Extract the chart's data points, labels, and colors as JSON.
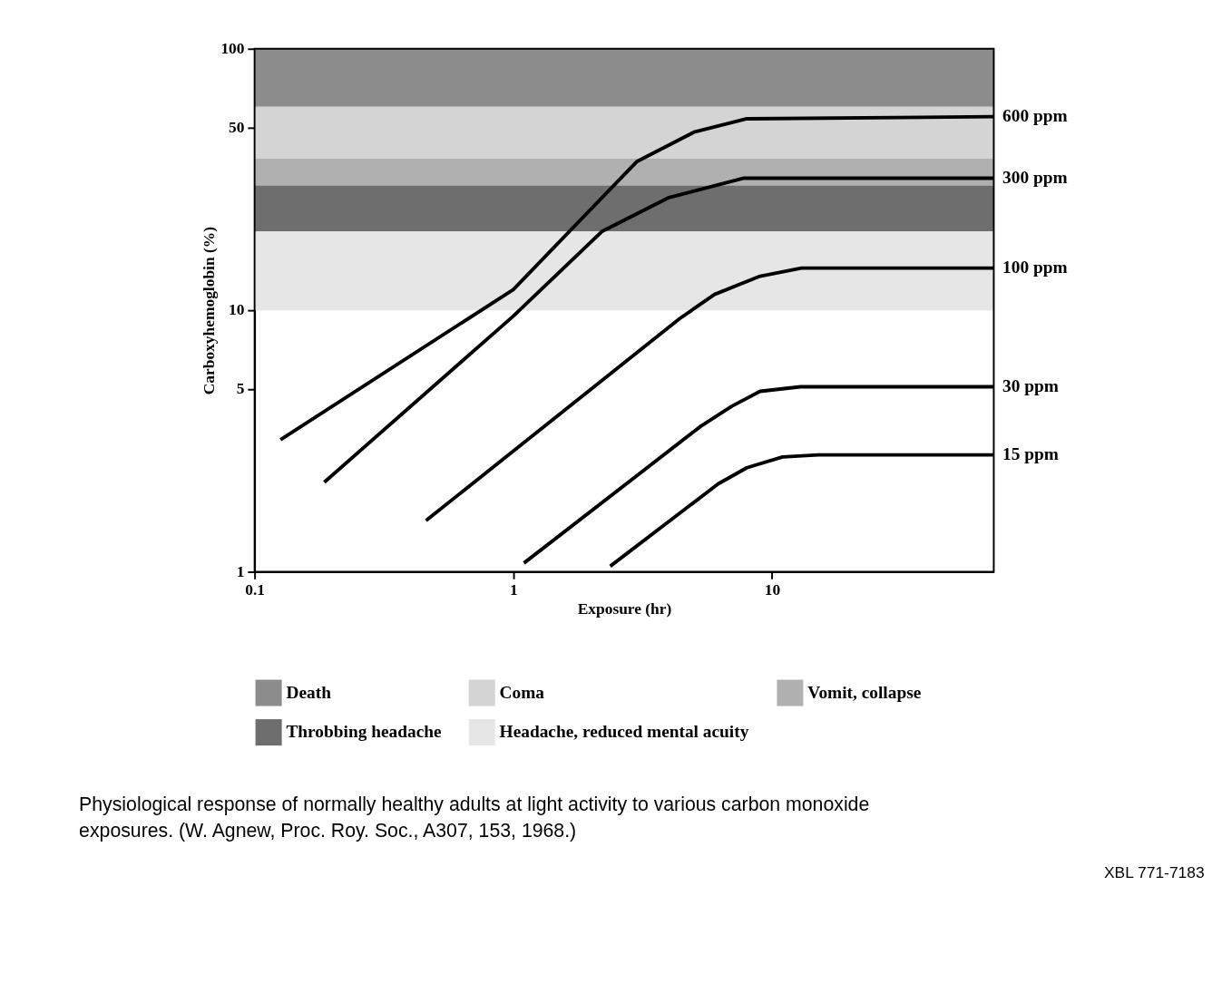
{
  "chart_data": {
    "type": "line",
    "xlabel": "Exposure (hr)",
    "ylabel": "Carboxyhemoglobin (%)",
    "log": "xy",
    "xlim": [
      0.1,
      72
    ],
    "ylim": [
      1,
      100
    ],
    "xticks": [
      0.1,
      1,
      10
    ],
    "yticks": [
      1,
      5,
      10,
      50,
      100
    ],
    "legend": "bottom",
    "bands": [
      {
        "axis": "y",
        "from": 60,
        "to": 100,
        "label": "Death",
        "color": "#8c8c8c"
      },
      {
        "axis": "y",
        "from": 38,
        "to": 60,
        "label": "Coma",
        "color": "#d4d4d4"
      },
      {
        "axis": "y",
        "from": 30,
        "to": 38,
        "label": "Vomit, collapse",
        "color": "#b0b0b0"
      },
      {
        "axis": "y",
        "from": 20,
        "to": 30,
        "label": "Throbbing headache",
        "color": "#6e6e6e"
      },
      {
        "axis": "y",
        "from": 10,
        "to": 20,
        "label": "Headache, reduced mental acuity",
        "color": "#e6e6e6"
      }
    ],
    "series": [
      {
        "name": "600 ppm",
        "color": "#000000",
        "x": [
          0.126,
          1.0,
          3.0,
          5,
          8,
          72
        ],
        "values": [
          3.2,
          12,
          37,
          48,
          54,
          55
        ]
      },
      {
        "name": "300 ppm",
        "color": "#000000",
        "x": [
          0.186,
          1.0,
          2.2,
          4,
          7.8,
          72
        ],
        "values": [
          2.2,
          9.5,
          20,
          27,
          32,
          32
        ]
      },
      {
        "name": "100 ppm",
        "color": "#000000",
        "x": [
          0.46,
          4.4,
          6,
          9,
          13,
          72
        ],
        "values": [
          1.57,
          9.3,
          11.5,
          13.5,
          14.5,
          14.5
        ]
      },
      {
        "name": "30 ppm",
        "color": "#000000",
        "x": [
          1.1,
          5.3,
          7,
          9,
          12.9,
          72
        ],
        "values": [
          1.08,
          3.6,
          4.3,
          4.9,
          5.1,
          5.1
        ]
      },
      {
        "name": "15 ppm",
        "color": "#000000",
        "x": [
          2.37,
          6.2,
          8,
          11,
          15.1,
          72
        ],
        "values": [
          1.05,
          2.17,
          2.5,
          2.75,
          2.8,
          2.8
        ]
      }
    ],
    "annotations": [
      "Physiological response of normally healthy adults at light activity to various carbon monoxide exposures. (W. Agnew, Proc. Roy. Soc., A307, 153, 1968.)",
      "XBL 771-7183"
    ]
  }
}
